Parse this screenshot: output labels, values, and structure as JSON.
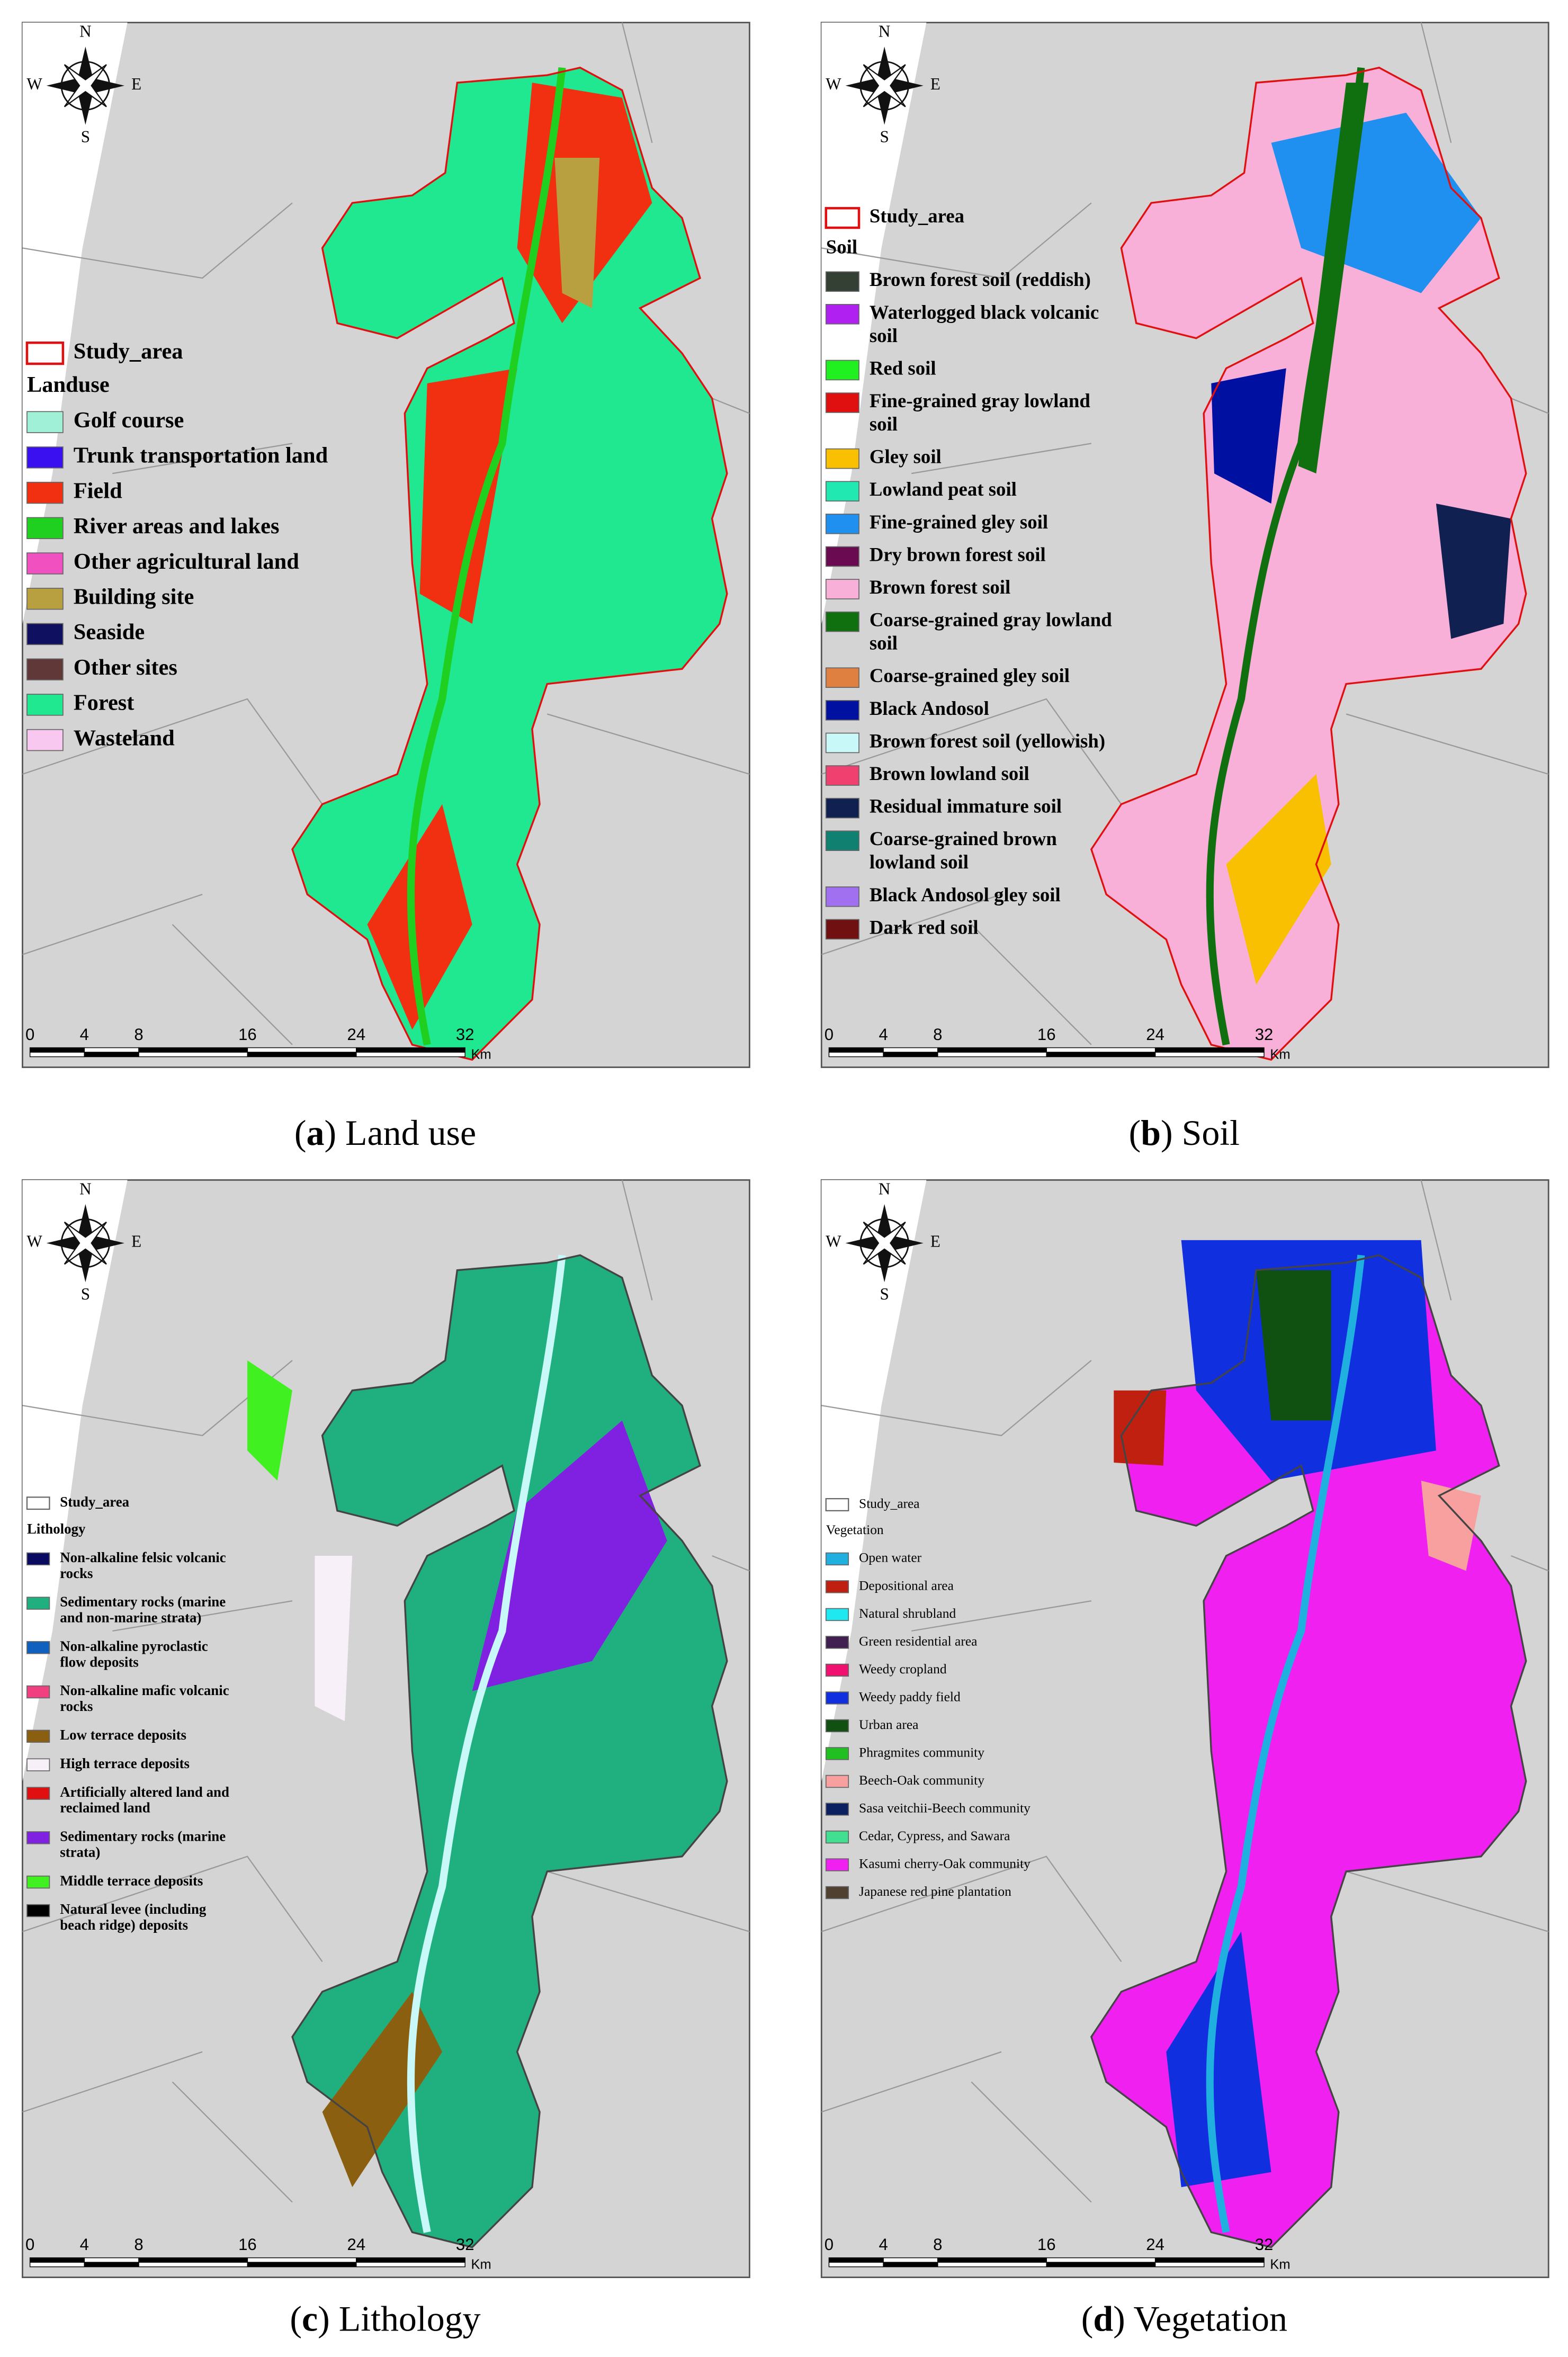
{
  "panels": [
    {
      "caption": [
        "(",
        "a",
        ")",
        " Land use"
      ],
      "compass": {
        "n": "N",
        "e": "E",
        "s": "S",
        "w": "W"
      },
      "scale": {
        "ticks": [
          0,
          4,
          8,
          16,
          24,
          32
        ],
        "unit": "Km"
      },
      "legend": {
        "study_area": "Study_area",
        "title": "Landuse",
        "items": [
          {
            "label": [
              "Golf course"
            ],
            "color": "#a0f0d8"
          },
          {
            "label": [
              "Trunk transportation land"
            ],
            "color": "#3a10f0"
          },
          {
            "label": [
              "Field"
            ],
            "color": "#f03010"
          },
          {
            "label": [
              "River areas and lakes"
            ],
            "color": "#20d020"
          },
          {
            "label": [
              "Other agricultural land"
            ],
            "color": "#f050c0"
          },
          {
            "label": [
              "Building site"
            ],
            "color": "#b8a040"
          },
          {
            "label": [
              "Seaside"
            ],
            "color": "#101060"
          },
          {
            "label": [
              "Other sites"
            ],
            "color": "#603838"
          },
          {
            "label": [
              "Forest"
            ],
            "color": "#20e890"
          },
          {
            "label": [
              "Wasteland"
            ],
            "color": "#f8c8f0"
          }
        ]
      }
    },
    {
      "caption": [
        "(",
        "b",
        ")",
        " Soil"
      ],
      "compass": {
        "n": "N",
        "e": "E",
        "s": "S",
        "w": "W"
      },
      "scale": {
        "ticks": [
          0,
          4,
          8,
          16,
          24,
          32
        ],
        "unit": "Km"
      },
      "legend": {
        "study_area": "Study_area",
        "title": "Soil",
        "items": [
          {
            "label": [
              "Brown forest soil (reddish)"
            ],
            "color": "#334033"
          },
          {
            "label": [
              "Waterlogged black volcanic",
              "soil"
            ],
            "color": "#b020f0"
          },
          {
            "label": [
              "Red soil"
            ],
            "color": "#20f020"
          },
          {
            "label": [
              "Fine-grained gray lowland",
              "soil"
            ],
            "color": "#e01010"
          },
          {
            "label": [
              "Gley soil"
            ],
            "color": "#f8c000"
          },
          {
            "label": [
              "Lowland peat soil"
            ],
            "color": "#20e8b0"
          },
          {
            "label": [
              "Fine-grained gley soil"
            ],
            "color": "#2090f0"
          },
          {
            "label": [
              "Dry brown forest soil"
            ],
            "color": "#6a0a50"
          },
          {
            "label": [
              "Brown forest soil"
            ],
            "color": "#f8b0d8"
          },
          {
            "label": [
              "Coarse-grained gray lowland",
              "soil"
            ],
            "color": "#107010"
          },
          {
            "label": [
              "Coarse-grained gley soil"
            ],
            "color": "#e08040"
          },
          {
            "label": [
              "Black Andosol"
            ],
            "color": "#0010a0"
          },
          {
            "label": [
              "Brown forest soil (yellowish)"
            ],
            "color": "#c8f8f8"
          },
          {
            "label": [
              "Brown lowland soil"
            ],
            "color": "#f04070"
          },
          {
            "label": [
              "Residual immature soil"
            ],
            "color": "#102050"
          },
          {
            "label": [
              "Coarse-grained brown",
              "lowland soil"
            ],
            "color": "#108070"
          },
          {
            "label": [
              "Black Andosol gley soil"
            ],
            "color": "#a070f0"
          },
          {
            "label": [
              "Dark red soil"
            ],
            "color": "#701010"
          }
        ]
      }
    },
    {
      "caption": [
        "(",
        "c",
        ")",
        " Lithology"
      ],
      "compass": {
        "n": "N",
        "e": "E",
        "s": "S",
        "w": "W"
      },
      "scale": {
        "ticks": [
          0,
          4,
          8,
          16,
          24,
          32
        ],
        "unit": "Km"
      },
      "legend": {
        "study_area": "Study_area",
        "title": "Lithology",
        "items": [
          {
            "label": [
              "Non-alkaline felsic volcanic",
              "rocks"
            ],
            "color": "#0a0a60"
          },
          {
            "label": [
              "Sedimentary rocks (marine",
              "and non-marine strata)"
            ],
            "color": "#20b080"
          },
          {
            "label": [
              "Non-alkaline pyroclastic",
              "flow deposits"
            ],
            "color": "#1060c0"
          },
          {
            "label": [
              "Non-alkaline mafic volcanic",
              "rocks"
            ],
            "color": "#f04080"
          },
          {
            "label": [
              "Low terrace deposits"
            ],
            "color": "#8a6010"
          },
          {
            "label": [
              "High terrace deposits"
            ],
            "color": "#f8f0f8"
          },
          {
            "label": [
              "Artificially altered land and",
              "reclaimed land"
            ],
            "color": "#e01010"
          },
          {
            "label": [
              "Sedimentary rocks (marine",
              "strata)"
            ],
            "color": "#8020e0"
          },
          {
            "label": [
              "Middle terrace deposits"
            ],
            "color": "#40f020"
          },
          {
            "label": [
              "Natural levee (including",
              "beach ridge) deposits"
            ],
            "color": "#000000"
          }
        ]
      }
    },
    {
      "caption": [
        "(",
        "d",
        ")",
        " Vegetation"
      ],
      "compass": {
        "n": "N",
        "e": "E",
        "s": "S",
        "w": "W"
      },
      "scale": {
        "ticks": [
          0,
          4,
          8,
          16,
          24,
          32
        ],
        "unit": "Km"
      },
      "legend": {
        "study_area": "Study_area",
        "title": "Vegetation",
        "items": [
          {
            "label": [
              "Open water"
            ],
            "color": "#20b0e0"
          },
          {
            "label": [
              "Depositional area"
            ],
            "color": "#c02010"
          },
          {
            "label": [
              "Natural shrubland"
            ],
            "color": "#20e8f0"
          },
          {
            "label": [
              "Green residential area"
            ],
            "color": "#402050"
          },
          {
            "label": [
              "Weedy cropland"
            ],
            "color": "#f01070"
          },
          {
            "label": [
              "Weedy paddy field"
            ],
            "color": "#1030e0"
          },
          {
            "label": [
              "Urban area"
            ],
            "color": "#105010"
          },
          {
            "label": [
              "Phragmites community"
            ],
            "color": "#20c020"
          },
          {
            "label": [
              "Beech-Oak community"
            ],
            "color": "#f8a0a0"
          },
          {
            "label": [
              "Sasa veitchii-Beech community"
            ],
            "color": "#0a2060"
          },
          {
            "label": [
              "Cedar, Cypress, and Sawara"
            ],
            "color": "#40e090"
          },
          {
            "label": [
              "Kasumi cherry-Oak community"
            ],
            "color": "#f020f0"
          },
          {
            "label": [
              "Japanese red pine plantation"
            ],
            "color": "#504030"
          }
        ]
      }
    }
  ]
}
